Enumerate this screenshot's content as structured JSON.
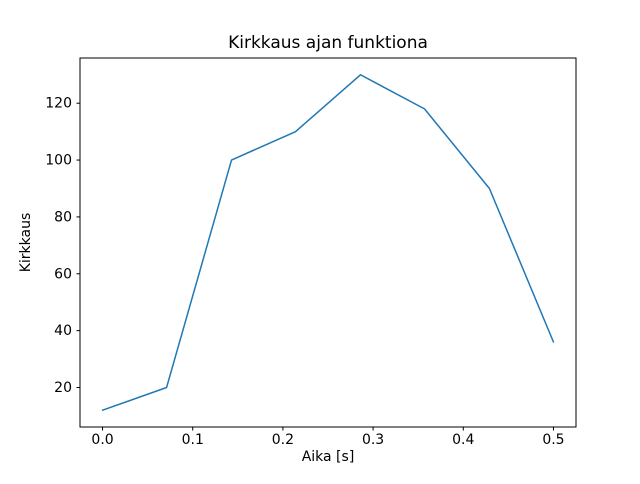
{
  "chart_data": {
    "type": "line",
    "title": "Kirkkaus ajan funktiona",
    "xlabel": "Aika [s]",
    "ylabel": "Kirkkaus",
    "x": [
      0.0,
      0.071,
      0.143,
      0.214,
      0.286,
      0.357,
      0.429,
      0.5
    ],
    "y": [
      12,
      20,
      100,
      110,
      130,
      118,
      90,
      36
    ],
    "xlim": [
      -0.025,
      0.525
    ],
    "ylim": [
      6.1,
      135.9
    ],
    "xticks": {
      "values": [
        0.0,
        0.1,
        0.2,
        0.3,
        0.4,
        0.5
      ],
      "labels": [
        "0.0",
        "0.1",
        "0.2",
        "0.3",
        "0.4",
        "0.5"
      ]
    },
    "yticks": {
      "values": [
        20,
        40,
        60,
        80,
        100,
        120
      ],
      "labels": [
        "20",
        "40",
        "60",
        "80",
        "100",
        "120"
      ]
    },
    "line_color": "#1f77b4",
    "axes_color": "#000000",
    "background": "#ffffff",
    "grid": false,
    "legend": null
  }
}
